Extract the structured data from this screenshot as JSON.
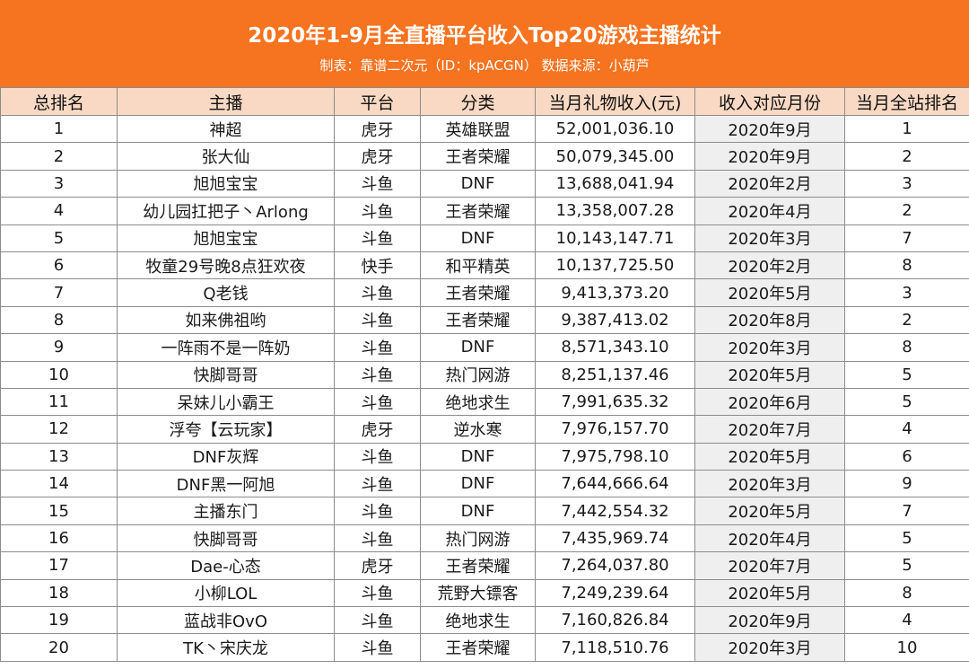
{
  "title": "2020年1-9月全直播平台收入Top20游戏主播统计",
  "subtitle": "制表：靠谱二次元（ID：kpACGN） 数据来源：小葫芦",
  "columns": [
    "总排名",
    "主播",
    "平台",
    "分类",
    "当月礼物收入(元)",
    "收入对应月份",
    "当月全站排名"
  ],
  "rows": [
    [
      "1",
      "神超",
      "虎牙",
      "英雄联盟",
      "52,001,036.10",
      "2020年9月",
      "1"
    ],
    [
      "2",
      "张大仙",
      "虎牙",
      "王者荣耀",
      "50,079,345.00",
      "2020年9月",
      "2"
    ],
    [
      "3",
      "旭旭宝宝",
      "斗鱼",
      "DNF",
      "13,688,041.94",
      "2020年2月",
      "3"
    ],
    [
      "4",
      "幼儿园扛把子丶Arlong",
      "斗鱼",
      "王者荣耀",
      "13,358,007.28",
      "2020年4月",
      "2"
    ],
    [
      "5",
      "旭旭宝宝",
      "斗鱼",
      "DNF",
      "10,143,147.71",
      "2020年3月",
      "7"
    ],
    [
      "6",
      "牧童29号晚8点狂欢夜",
      "快手",
      "和平精英",
      "10,137,725.50",
      "2020年2月",
      "8"
    ],
    [
      "7",
      "Q老钱",
      "斗鱼",
      "王者荣耀",
      "9,413,373.20",
      "2020年5月",
      "3"
    ],
    [
      "8",
      "如来佛祖哟",
      "斗鱼",
      "王者荣耀",
      "9,387,413.02",
      "2020年8月",
      "2"
    ],
    [
      "9",
      "一阵雨不是一阵奶",
      "斗鱼",
      "DNF",
      "8,571,343.10",
      "2020年3月",
      "8"
    ],
    [
      "10",
      "快脚哥哥",
      "斗鱼",
      "热门网游",
      "8,251,137.46",
      "2020年5月",
      "5"
    ],
    [
      "11",
      "呆妹儿小霸王",
      "斗鱼",
      "绝地求生",
      "7,991,635.32",
      "2020年6月",
      "5"
    ],
    [
      "12",
      "浮夸【云玩家】",
      "虎牙",
      "逆水寒",
      "7,976,157.70",
      "2020年7月",
      "4"
    ],
    [
      "13",
      "DNF灰辉",
      "斗鱼",
      "DNF",
      "7,975,798.10",
      "2020年5月",
      "6"
    ],
    [
      "14",
      "DNF黑一阿旭",
      "斗鱼",
      "DNF",
      "7,644,666.64",
      "2020年3月",
      "9"
    ],
    [
      "15",
      "主播东门",
      "斗鱼",
      "DNF",
      "7,442,554.32",
      "2020年5月",
      "7"
    ],
    [
      "16",
      "快脚哥哥",
      "斗鱼",
      "热门网游",
      "7,435,969.74",
      "2020年4月",
      "5"
    ],
    [
      "17",
      "Dae-心态",
      "虎牙",
      "王者荣耀",
      "7,264,037.80",
      "2020年7月",
      "5"
    ],
    [
      "18",
      "小柳LOL",
      "斗鱼",
      "荒野大镖客",
      "7,249,239.64",
      "2020年5月",
      "8"
    ],
    [
      "19",
      "蓝战非OvO",
      "斗鱼",
      "绝地求生",
      "7,160,826.84",
      "2020年9月",
      "4"
    ],
    [
      "20",
      "TK丶宋庆龙",
      "斗鱼",
      "王者荣耀",
      "7,118,510.76",
      "2020年3月",
      "10"
    ]
  ],
  "colors": {
    "header_bg": "#f6731f",
    "column_header_bg": "#f9d9c3",
    "month_column_bg": "#efefef",
    "grid_line": "#8c8c8c"
  }
}
